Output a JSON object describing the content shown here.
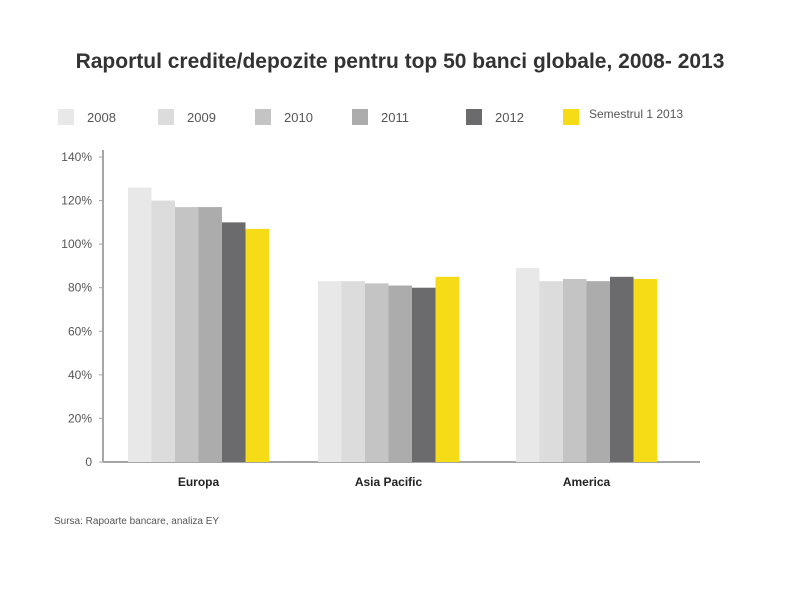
{
  "chart_data": {
    "type": "bar",
    "title": "Raportul credite/depozite pentru top 50 banci globale, 2008- 2013",
    "categories": [
      "Europa",
      "Asia Pacific",
      "America"
    ],
    "series": [
      {
        "name": "2008",
        "color": "#e8e8e8",
        "values": [
          126,
          83,
          89
        ]
      },
      {
        "name": "2009",
        "color": "#dcdcdc",
        "values": [
          120,
          83,
          83
        ]
      },
      {
        "name": "2010",
        "color": "#c4c4c4",
        "values": [
          117,
          82,
          84
        ]
      },
      {
        "name": "2011",
        "color": "#acacac",
        "values": [
          117,
          81,
          83
        ]
      },
      {
        "name": "2012",
        "color": "#6b6b6d",
        "values": [
          110,
          80,
          85
        ]
      },
      {
        "name": "Semestrul 1 2013",
        "color": "#f5dc16",
        "values": [
          107,
          85,
          84
        ]
      }
    ],
    "yticks": [
      "0",
      "20%",
      "40%",
      "60%",
      "80%",
      "100%",
      "120%",
      "140%"
    ],
    "ylim": [
      0,
      140
    ],
    "legend_position": "top",
    "grid": false
  },
  "source": "Sursa: Rapoarte bancare, analiza EY"
}
